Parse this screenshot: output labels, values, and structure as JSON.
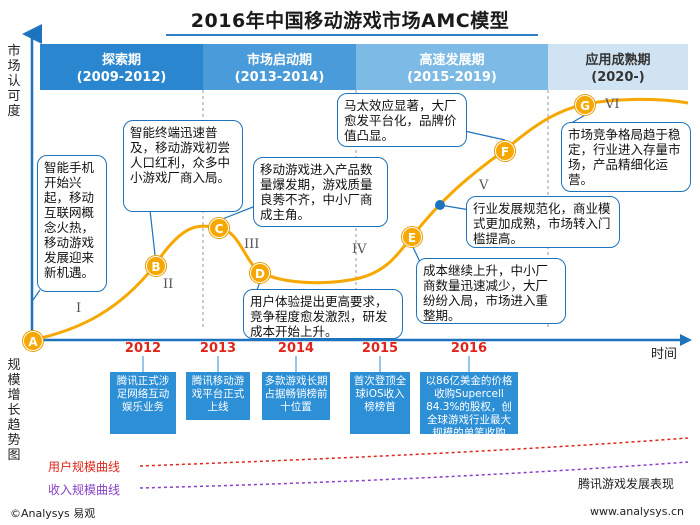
{
  "title": "2016年中国移动游戏市场AMC模型",
  "y_axis_top_label": "市场认可度",
  "y_axis_bottom_label": "规模增长趋势图",
  "x_axis_label": "时间",
  "phases": [
    {
      "name": "探索期",
      "years": "(2009-2012)"
    },
    {
      "name": "市场启动期",
      "years": "(2013-2014)"
    },
    {
      "name": "高速发展期",
      "years": "(2015-2019)"
    },
    {
      "name": "应用成熟期",
      "years": "(2020-)"
    }
  ],
  "colors": {
    "phase1": "#2a87cf",
    "phase2": "#4a9bd9",
    "phase3": "#7dbbe6",
    "phase4": "#cfe3f2",
    "curve": "#f6a800",
    "accent": "#1e73be",
    "year": "#e0251b",
    "user_curve": "#e0251b",
    "revenue_curve": "#8a3fc8"
  },
  "points": [
    {
      "label": "A"
    },
    {
      "label": "B"
    },
    {
      "label": "C"
    },
    {
      "label": "D"
    },
    {
      "label": "E"
    },
    {
      "label": "F"
    },
    {
      "label": "G"
    }
  ],
  "romans": [
    "I",
    "II",
    "III",
    "IV",
    "V",
    "VI"
  ],
  "callouts": [
    "智能手机开始兴起，移动互联网概念火热，移动游戏发展迎来新机遇。",
    "智能终端迅速普及，移动游戏初尝人口红利，众多中小游戏厂商入局。",
    "移动游戏进入产品数量爆发期，游戏质量良莠不齐，中小厂商成主角。",
    "用户体验提出更高要求，竞争程度愈发激烈，研发成本开始上升。",
    "成本继续上升，中小厂商数量迅速减少，大厂纷纷入局，市场进入重整期。",
    "行业发展规范化，商业模式更加成熟，市场转入门槛提高。",
    "马太效应显著，大厂愈发平台化，品牌价值凸显。",
    "市场竞争格局趋于稳定，行业进入存量市场，产品精细化运营。"
  ],
  "timeline": [
    {
      "year": "2012",
      "event": "腾讯正式涉足网络互动娱乐业务"
    },
    {
      "year": "2013",
      "event": "腾讯移动游戏平台正式上线"
    },
    {
      "year": "2014",
      "event": "多款游戏长期占据畅销榜前十位置"
    },
    {
      "year": "2015",
      "event": "首次登顶全球iOS收入榜榜首"
    },
    {
      "year": "2016",
      "event": "以86亿美金的价格收购Supercell 84.3%的股权，创全球游戏行业最大规模的单笔收购"
    }
  ],
  "legend": {
    "user": "用户规模曲线",
    "revenue": "收入规模曲线"
  },
  "footer_left": "©Analysys 易观",
  "footer_right_top": "腾讯游戏发展表现",
  "footer_right_bottom": "www.analysys.cn"
}
